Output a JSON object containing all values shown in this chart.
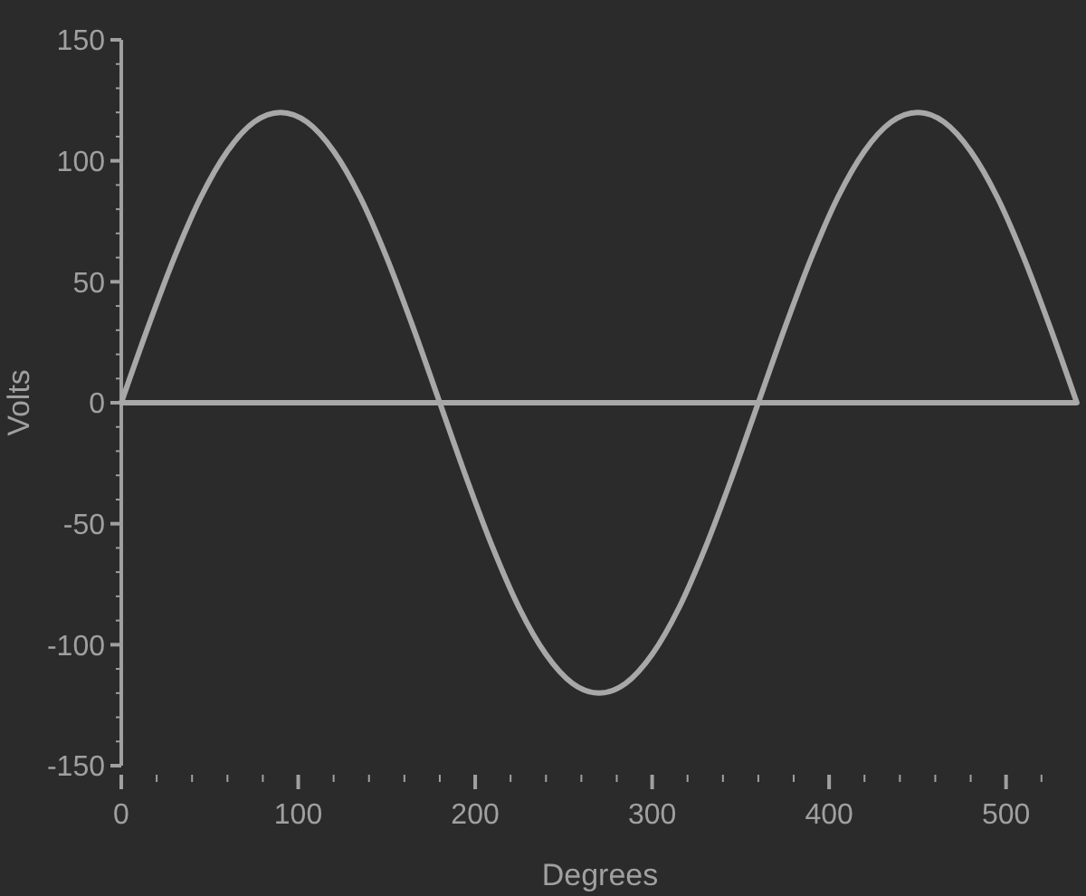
{
  "chart_data": {
    "type": "line",
    "xlabel": "Degrees",
    "ylabel": "Volts",
    "x": [
      0,
      15,
      30,
      45,
      60,
      75,
      90,
      105,
      120,
      135,
      150,
      165,
      180,
      195,
      210,
      225,
      240,
      255,
      270,
      285,
      300,
      315,
      330,
      345,
      360,
      375,
      390,
      405,
      420,
      435,
      450,
      465,
      480,
      495,
      510,
      525,
      540
    ],
    "series": [
      {
        "color": "#a8a8a8",
        "values": [
          0,
          31,
          60,
          85,
          104,
          116,
          120,
          116,
          104,
          85,
          60,
          31,
          0,
          -31,
          -60,
          -85,
          -104,
          -116,
          -120,
          -116,
          -104,
          -85,
          -60,
          -31,
          0,
          31,
          60,
          85,
          104,
          116,
          120,
          116,
          104,
          85,
          60,
          31,
          0
        ]
      }
    ],
    "xlim": [
      0,
      540
    ],
    "xticks": [
      0,
      {
        "value": 20,
        "label": null
      },
      {
        "value": 40,
        "label": null
      },
      {
        "value": 60,
        "label": null
      },
      {
        "value": 80,
        "label": null
      },
      100,
      {
        "value": 120,
        "label": null
      },
      {
        "value": 140,
        "label": null
      },
      {
        "value": 160,
        "label": null
      },
      {
        "value": 180,
        "label": null
      },
      200,
      {
        "value": 220,
        "label": null
      },
      {
        "value": 240,
        "label": null
      },
      {
        "value": 260,
        "label": null
      },
      {
        "value": 280,
        "label": null
      },
      300,
      {
        "value": 320,
        "label": null
      },
      {
        "value": 340,
        "label": null
      },
      {
        "value": 360,
        "label": null
      },
      {
        "value": 380,
        "label": null
      },
      400,
      {
        "value": 420,
        "label": null
      },
      {
        "value": 440,
        "label": null
      },
      {
        "value": 460,
        "label": null
      },
      {
        "value": 480,
        "label": null
      },
      500,
      {
        "value": 520,
        "label": null
      }
    ],
    "ylim": [
      -150,
      150
    ],
    "yticks": [
      -150,
      {
        "value": -140,
        "label": null
      },
      {
        "value": -130,
        "label": null
      },
      {
        "value": -120,
        "label": null
      },
      {
        "value": -110,
        "label": null
      },
      -100,
      {
        "value": -90,
        "label": null
      },
      {
        "value": -80,
        "label": null
      },
      {
        "value": -70,
        "label": null
      },
      {
        "value": -60,
        "label": null
      },
      -50,
      {
        "value": -40,
        "label": null
      },
      {
        "value": -30,
        "label": null
      },
      {
        "value": -20,
        "label": null
      },
      {
        "value": -10,
        "label": null
      },
      0,
      {
        "value": 10,
        "label": null
      },
      {
        "value": 20,
        "label": null
      },
      {
        "value": 30,
        "label": null
      },
      {
        "value": 40,
        "label": null
      },
      50,
      {
        "value": 60,
        "label": null
      },
      {
        "value": 70,
        "label": null
      },
      {
        "value": 80,
        "label": null
      },
      {
        "value": 90,
        "label": null
      },
      100,
      {
        "value": 110,
        "label": null
      },
      {
        "value": 120,
        "label": null
      },
      {
        "value": 130,
        "label": null
      },
      {
        "value": 140,
        "label": null
      },
      150
    ],
    "ref_lines": [
      {
        "axis": "y",
        "value": 0,
        "color": "#a8a8a8"
      }
    ],
    "marker": "none",
    "line_style": "solid"
  }
}
